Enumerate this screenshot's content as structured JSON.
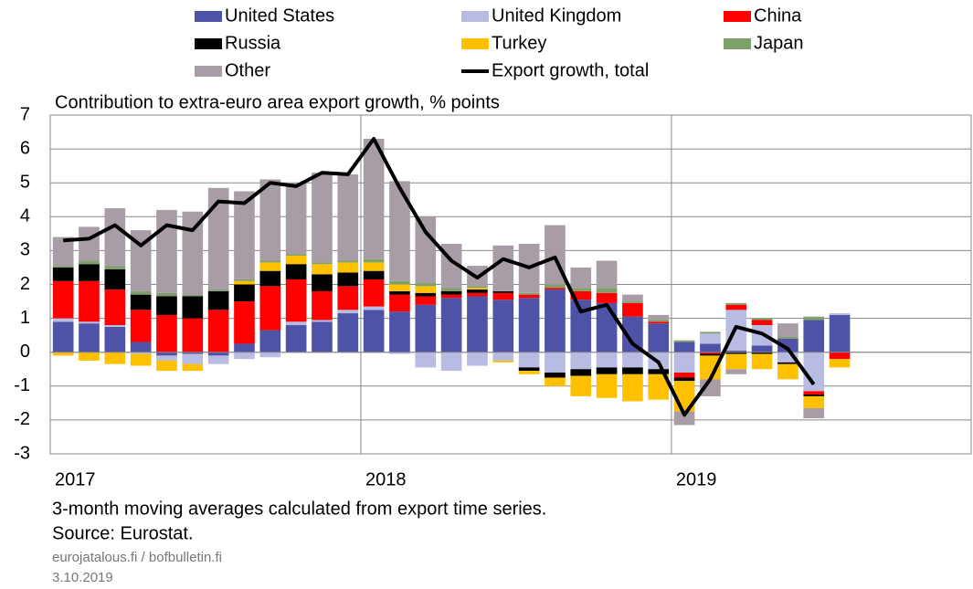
{
  "chart_data": {
    "type": "bar",
    "stacked": true,
    "title": "Contribution to extra-euro area export growth, % points",
    "notes": [
      "3-month moving averages calculated from export time series.",
      "Source: Eurostat."
    ],
    "footer": [
      "eurojatalous.fi / bofbulletin.fi",
      "3.10.2019"
    ],
    "categories": [
      "2017",
      null,
      null,
      null,
      null,
      null,
      null,
      null,
      null,
      null,
      null,
      null,
      "2018",
      null,
      null,
      null,
      null,
      null,
      null,
      null,
      null,
      null,
      null,
      null,
      "2019",
      null,
      null,
      null,
      null,
      null,
      null,
      null,
      null,
      null,
      null,
      null
    ],
    "ylim": [
      -3,
      7
    ],
    "yticks": [
      -3,
      -2,
      -1,
      0,
      1,
      2,
      3,
      4,
      5,
      6,
      7
    ],
    "grid": true,
    "series": [
      {
        "name": "United States",
        "color": "#4f53a8",
        "values": [
          0.9,
          0.85,
          0.75,
          0.3,
          -0.1,
          -0.05,
          -0.1,
          0.25,
          0.65,
          0.8,
          0.9,
          1.15,
          1.25,
          1.2,
          1.4,
          1.6,
          1.65,
          1.55,
          1.6,
          1.85,
          1.55,
          1.45,
          1.05,
          0.85,
          0.3,
          0.25,
          0.05,
          0.2,
          0.4,
          0.95,
          1.1,
          null,
          null,
          null,
          null,
          null
        ]
      },
      {
        "name": "United Kingdom",
        "color": "#b8bce2",
        "values": [
          0.1,
          0.05,
          0.05,
          -0.05,
          -0.15,
          -0.3,
          -0.25,
          -0.2,
          -0.15,
          0.1,
          0.05,
          0.1,
          0.1,
          -0.05,
          -0.45,
          -0.55,
          -0.4,
          -0.25,
          -0.45,
          -0.6,
          -0.5,
          -0.45,
          -0.45,
          -0.5,
          -0.6,
          0.3,
          1.2,
          0.6,
          -0.3,
          -1.15,
          0.05,
          null,
          null,
          null,
          null,
          null
        ]
      },
      {
        "name": "China",
        "color": "#ff0000",
        "values": [
          1.1,
          1.2,
          1.05,
          0.95,
          1.1,
          1.0,
          1.25,
          1.25,
          1.3,
          1.25,
          0.85,
          0.7,
          0.8,
          0.5,
          0.25,
          0.1,
          0.1,
          0.2,
          0.1,
          0.05,
          0.25,
          0.3,
          0.4,
          0.05,
          -0.15,
          -0.05,
          0.15,
          0.15,
          0,
          -0.1,
          -0.2,
          null,
          null,
          null,
          null,
          null
        ]
      },
      {
        "name": "Russia",
        "color": "#000000",
        "values": [
          0.4,
          0.5,
          0.6,
          0.45,
          0.55,
          0.65,
          0.55,
          0.5,
          0.45,
          0.45,
          0.5,
          0.4,
          0.25,
          0.1,
          0.1,
          0.1,
          0.1,
          0.05,
          -0.1,
          -0.15,
          -0.2,
          -0.2,
          -0.2,
          -0.15,
          -0.1,
          -0.05,
          -0.05,
          -0.05,
          -0.05,
          -0.05,
          0,
          null,
          null,
          null,
          null,
          null
        ]
      },
      {
        "name": "Turkey",
        "color": "#ffc000",
        "values": [
          -0.1,
          -0.25,
          -0.35,
          -0.35,
          -0.3,
          -0.2,
          0,
          0.1,
          0.25,
          0.25,
          0.3,
          0.3,
          0.25,
          0.2,
          0.2,
          0,
          0.05,
          -0.05,
          -0.1,
          -0.25,
          -0.6,
          -0.7,
          -0.8,
          -0.75,
          -0.9,
          -0.7,
          -0.45,
          -0.45,
          -0.45,
          -0.35,
          -0.25,
          null,
          null,
          null,
          null,
          null
        ]
      },
      {
        "name": "Japan",
        "color": "#7fa06a",
        "values": [
          0.05,
          0.1,
          0.1,
          0.1,
          0.1,
          0.05,
          0.05,
          0.05,
          0.05,
          0.05,
          0.05,
          0.05,
          0.1,
          0.1,
          0.1,
          0.1,
          0.05,
          0,
          0.05,
          0.1,
          0.1,
          0.15,
          0.05,
          0.05,
          0.05,
          0.05,
          0.05,
          0.05,
          0.05,
          0.1,
          0,
          null,
          null,
          null,
          null,
          null
        ]
      },
      {
        "name": "Other",
        "color": "#a89ca6",
        "values": [
          0.85,
          1.0,
          1.7,
          1.8,
          2.45,
          2.45,
          3.0,
          2.6,
          2.4,
          2.1,
          2.65,
          2.55,
          3.55,
          2.95,
          1.95,
          1.3,
          0.6,
          1.35,
          1.45,
          1.75,
          0.6,
          0.8,
          0.2,
          0.15,
          -0.4,
          -0.5,
          -0.15,
          0,
          0.4,
          -0.3,
          0,
          null,
          null,
          null,
          null,
          null
        ]
      },
      {
        "name": "Export growth, total",
        "color": "#000000",
        "type": "line",
        "values": [
          3.3,
          3.35,
          3.75,
          3.15,
          3.75,
          3.6,
          4.45,
          4.4,
          5.0,
          4.9,
          5.3,
          5.25,
          6.3,
          4.85,
          3.55,
          2.7,
          2.2,
          2.75,
          2.5,
          2.8,
          1.2,
          1.4,
          0.25,
          -0.3,
          -1.85,
          -0.8,
          0.75,
          0.55,
          0.1,
          -0.95,
          null,
          null,
          null,
          null,
          null,
          null
        ]
      }
    ]
  }
}
